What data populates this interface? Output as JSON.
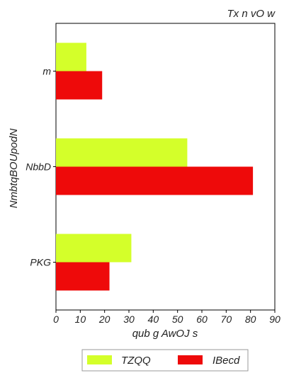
{
  "chart_data": {
    "type": "bar",
    "orientation": "horizontal",
    "title": "Tx n  vO w",
    "xlabel": "qub  g AwOJ s",
    "ylabel": "NmbtqBOUpodN",
    "categories": [
      "m",
      "NbbD",
      "PKG"
    ],
    "series": [
      {
        "name": "TZQQ",
        "color": "#d4ff2a",
        "values": [
          12.5,
          54,
          31
        ]
      },
      {
        "name": "IBecd",
        "color": "#ee0a0a",
        "values": [
          19,
          81,
          22
        ]
      }
    ],
    "xlim": [
      0,
      90
    ],
    "xticks": [
      0,
      10,
      20,
      30,
      40,
      50,
      60,
      70,
      80,
      90
    ],
    "grid": false,
    "legend_position": "bottom"
  }
}
